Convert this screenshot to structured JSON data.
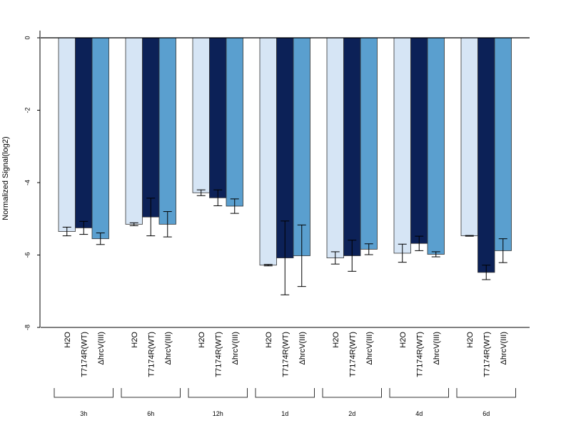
{
  "chart_data": {
    "type": "bar",
    "ylabel": "Normalized Signal(log2)",
    "ylim": [
      -8,
      0.2
    ],
    "yticks": [
      0,
      -2,
      -4,
      -6,
      -8
    ],
    "categories": [
      "3h",
      "6h",
      "12h",
      "1d",
      "2d",
      "4d",
      "6d"
    ],
    "grid": false,
    "series": [
      {
        "name": "H2O",
        "color": "#d6e5f5",
        "values": [
          -5.35,
          -5.15,
          -4.28,
          -6.28,
          -6.08,
          -5.95,
          -5.47
        ],
        "errors": [
          0.12,
          0.04,
          0.08,
          0.02,
          0.17,
          0.25,
          0.01
        ]
      },
      {
        "name": "T7174R(WT)",
        "color": "#0c2157",
        "values": [
          -5.25,
          -4.95,
          -4.42,
          -6.08,
          -6.02,
          -5.68,
          -6.48
        ],
        "errors": [
          0.18,
          0.52,
          0.22,
          1.02,
          0.43,
          0.2,
          0.2
        ]
      },
      {
        "name": "ΔhrcV(III)",
        "color": "#5a9fcf",
        "values": [
          -5.55,
          -5.15,
          -4.65,
          -6.02,
          -5.84,
          -5.98,
          -5.88
        ],
        "errors": [
          0.16,
          0.35,
          0.2,
          0.85,
          0.15,
          0.07,
          0.33
        ]
      }
    ]
  }
}
